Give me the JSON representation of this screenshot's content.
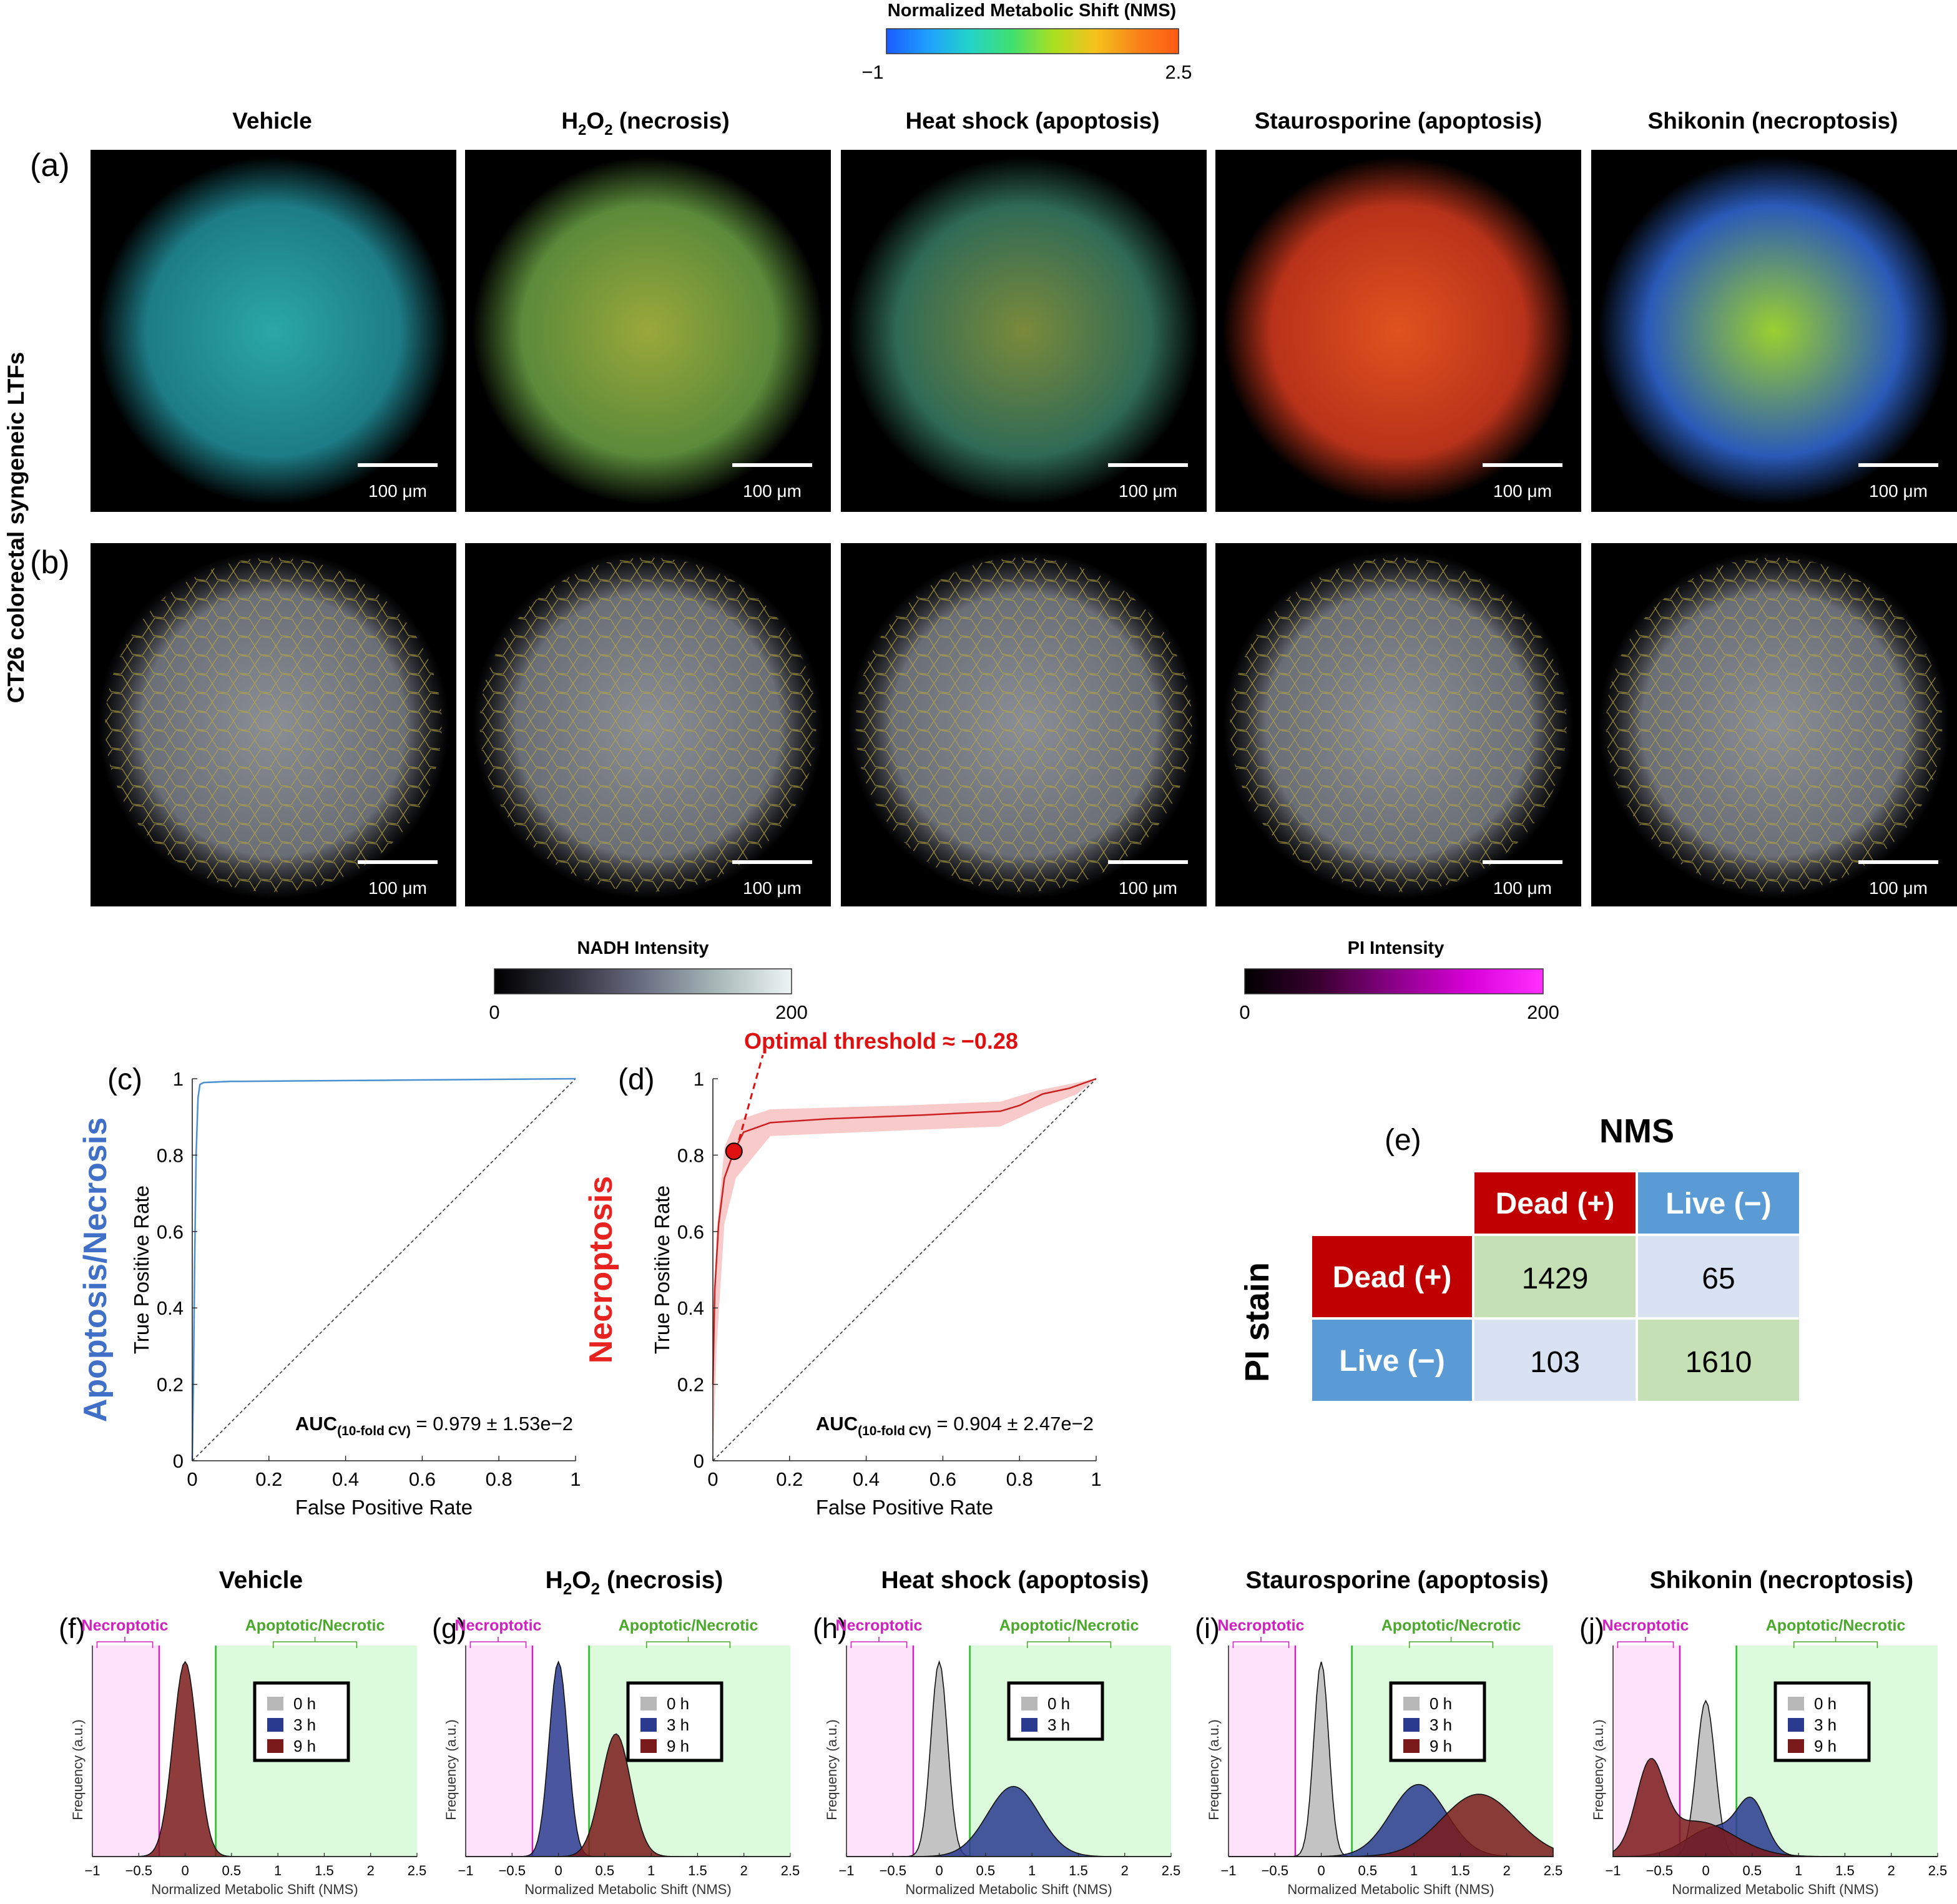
{
  "colorbars": {
    "nms": {
      "title": "Normalized Metabolic Shift (NMS)",
      "min": "−1",
      "max": "2.5",
      "stops": [
        "#1a5cff",
        "#1fa0ff",
        "#22d4c8",
        "#3fe070",
        "#a8e020",
        "#f5c21c",
        "#f88418",
        "#ff5a14"
      ]
    },
    "nadh": {
      "title": "NADH Intensity",
      "min": "0",
      "max": "200",
      "stops": [
        "#000000",
        "#30303c",
        "#6a6e82",
        "#a8b8b8",
        "#eef6f4"
      ]
    },
    "pi": {
      "title": "PI Intensity",
      "min": "0",
      "max": "200",
      "stops": [
        "#000000",
        "#3a0030",
        "#8a0088",
        "#d800d8",
        "#ff30ff"
      ]
    }
  },
  "row_label": "CT26 colorectal syngeneic LTFs",
  "row_a_label": "(a)",
  "row_b_label": "(b)",
  "scale_bar": "100 μm",
  "conditions": [
    {
      "id": "vehicle",
      "name": "Vehicle",
      "name_sub": "",
      "name_rest": ""
    },
    {
      "id": "h2o2",
      "name": "H",
      "name_sub": "2",
      "name_mid": "O",
      "name_sub2": "2",
      "name_rest": " (necrosis)"
    },
    {
      "id": "heat",
      "name": "Heat shock (apoptosis)",
      "name_sub": "",
      "name_rest": ""
    },
    {
      "id": "stauro",
      "name": "Staurosporine (apoptosis)",
      "name_sub": "",
      "name_rest": ""
    },
    {
      "id": "shikonin",
      "name": "Shikonin (necroptosis)",
      "name_sub": "",
      "name_rest": ""
    }
  ],
  "roc": [
    {
      "label": "(c)",
      "side_label": "Apoptosis/Necrosis",
      "side_color": "#3f6fc6",
      "auc_main": "AUC",
      "auc_sub": "(10-fold CV)",
      "auc_text": " = 0.979 ± 1.53e−2",
      "xlabel": "False Positive Rate",
      "ylabel": "True Positive Rate",
      "ticks": [
        "0",
        "0.2",
        "0.4",
        "0.6",
        "0.8",
        "1"
      ],
      "line_color": "#4a8fd0",
      "curve": [
        [
          0,
          0
        ],
        [
          0.003,
          0.2
        ],
        [
          0.006,
          0.5
        ],
        [
          0.01,
          0.8
        ],
        [
          0.015,
          0.95
        ],
        [
          0.02,
          0.985
        ],
        [
          0.03,
          0.99
        ],
        [
          0.1,
          0.993
        ],
        [
          0.5,
          0.996
        ],
        [
          1,
          1
        ]
      ]
    },
    {
      "label": "(d)",
      "side_label": "Necroptosis",
      "side_color": "#e8221e",
      "auc_main": "AUC",
      "auc_sub": "(10-fold CV)",
      "auc_text": " = 0.904 ± 2.47e−2",
      "xlabel": "False Positive Rate",
      "ylabel": "True Positive Rate",
      "ticks": [
        "0",
        "0.2",
        "0.4",
        "0.6",
        "0.8",
        "1"
      ],
      "line_color": "#cc2020",
      "threshold_text": "Optimal threshold ≈ −0.28",
      "threshold_point": [
        0.055,
        0.81
      ],
      "curve": [
        [
          0,
          0.2
        ],
        [
          0.005,
          0.45
        ],
        [
          0.015,
          0.62
        ],
        [
          0.03,
          0.74
        ],
        [
          0.055,
          0.81
        ],
        [
          0.08,
          0.86
        ],
        [
          0.15,
          0.885
        ],
        [
          0.3,
          0.895
        ],
        [
          0.55,
          0.905
        ],
        [
          0.75,
          0.915
        ],
        [
          0.8,
          0.93
        ],
        [
          0.86,
          0.96
        ],
        [
          0.93,
          0.975
        ],
        [
          1,
          1
        ]
      ],
      "band": {
        "upper": [
          [
            0,
            0.3
          ],
          [
            0.01,
            0.6
          ],
          [
            0.03,
            0.82
          ],
          [
            0.06,
            0.89
          ],
          [
            0.15,
            0.92
          ],
          [
            0.5,
            0.93
          ],
          [
            0.75,
            0.94
          ],
          [
            0.85,
            0.97
          ],
          [
            0.95,
            0.99
          ],
          [
            1,
            1
          ]
        ],
        "lower": [
          [
            0,
            0
          ],
          [
            0.01,
            0.3
          ],
          [
            0.03,
            0.62
          ],
          [
            0.06,
            0.74
          ],
          [
            0.15,
            0.85
          ],
          [
            0.5,
            0.865
          ],
          [
            0.75,
            0.875
          ],
          [
            0.85,
            0.92
          ],
          [
            0.95,
            0.96
          ],
          [
            1,
            1
          ]
        ]
      }
    }
  ],
  "confusion": {
    "label": "(e)",
    "col_title": "NMS",
    "row_title": "PI stain",
    "col_headers": [
      "Dead (+)",
      "Live (−)"
    ],
    "row_headers": [
      "Dead (+)",
      "Live (−)"
    ],
    "values": [
      [
        "1429",
        "65"
      ],
      [
        "103",
        "1610"
      ]
    ],
    "colors": {
      "dead": "#c00000",
      "live": "#5b9bd5",
      "correct": "#c5e0b4",
      "wrong": "#d9e2f2"
    }
  },
  "histograms": {
    "xlabel": "Normalized Metabolic Shift (NMS)",
    "ylabel": "Frequency (a.u.)",
    "xticks": [
      "−1",
      "−0.5",
      "0",
      "0.5",
      "1",
      "1.5",
      "2",
      "2.5"
    ],
    "region_left": "Necroptotic",
    "region_right": "Apoptotic/Necrotic",
    "necro_bound": -0.28,
    "apop_bound": 0.33,
    "series_colors": {
      "0 h": "#b8b8b8",
      "3 h": "#2a3a8f",
      "9 h": "#7a1a1a"
    },
    "panels": [
      {
        "label": "(f)",
        "legend": [
          "0 h",
          "3 h",
          "9 h"
        ],
        "series": [
          {
            "name": "9 h",
            "peaks": [
              [
                0,
                0.13,
                1.0
              ]
            ]
          }
        ]
      },
      {
        "label": "(g)",
        "legend": [
          "0 h",
          "3 h",
          "9 h"
        ],
        "series": [
          {
            "name": "3 h",
            "peaks": [
              [
                0.0,
                0.1,
                1.0
              ]
            ]
          },
          {
            "name": "9 h",
            "peaks": [
              [
                0.62,
                0.16,
                0.63
              ]
            ]
          }
        ]
      },
      {
        "label": "(h)",
        "legend": [
          "0 h",
          "3 h"
        ],
        "series": [
          {
            "name": "0 h",
            "peaks": [
              [
                0,
                0.09,
                1.0
              ]
            ]
          },
          {
            "name": "3 h",
            "peaks": [
              [
                0.8,
                0.28,
                0.36
              ]
            ]
          }
        ]
      },
      {
        "label": "(i)",
        "legend": [
          "0 h",
          "3 h",
          "9 h"
        ],
        "series": [
          {
            "name": "0 h",
            "peaks": [
              [
                0,
                0.08,
                1.0
              ]
            ]
          },
          {
            "name": "3 h",
            "peaks": [
              [
                1.05,
                0.3,
                0.37
              ]
            ]
          },
          {
            "name": "9 h",
            "peaks": [
              [
                1.7,
                0.4,
                0.32
              ]
            ]
          }
        ]
      },
      {
        "label": "(j)",
        "legend": [
          "0 h",
          "3 h",
          "9 h"
        ],
        "series": [
          {
            "name": "0 h",
            "peaks": [
              [
                0.0,
                0.1,
                0.8
              ]
            ]
          },
          {
            "name": "3 h",
            "peaks": [
              [
                0.5,
                0.15,
                0.24
              ],
              [
                0.1,
                0.3,
                0.15
              ]
            ]
          },
          {
            "name": "9 h",
            "peaks": [
              [
                -0.6,
                0.15,
                0.42
              ],
              [
                -0.1,
                0.4,
                0.18
              ]
            ]
          }
        ]
      }
    ]
  }
}
